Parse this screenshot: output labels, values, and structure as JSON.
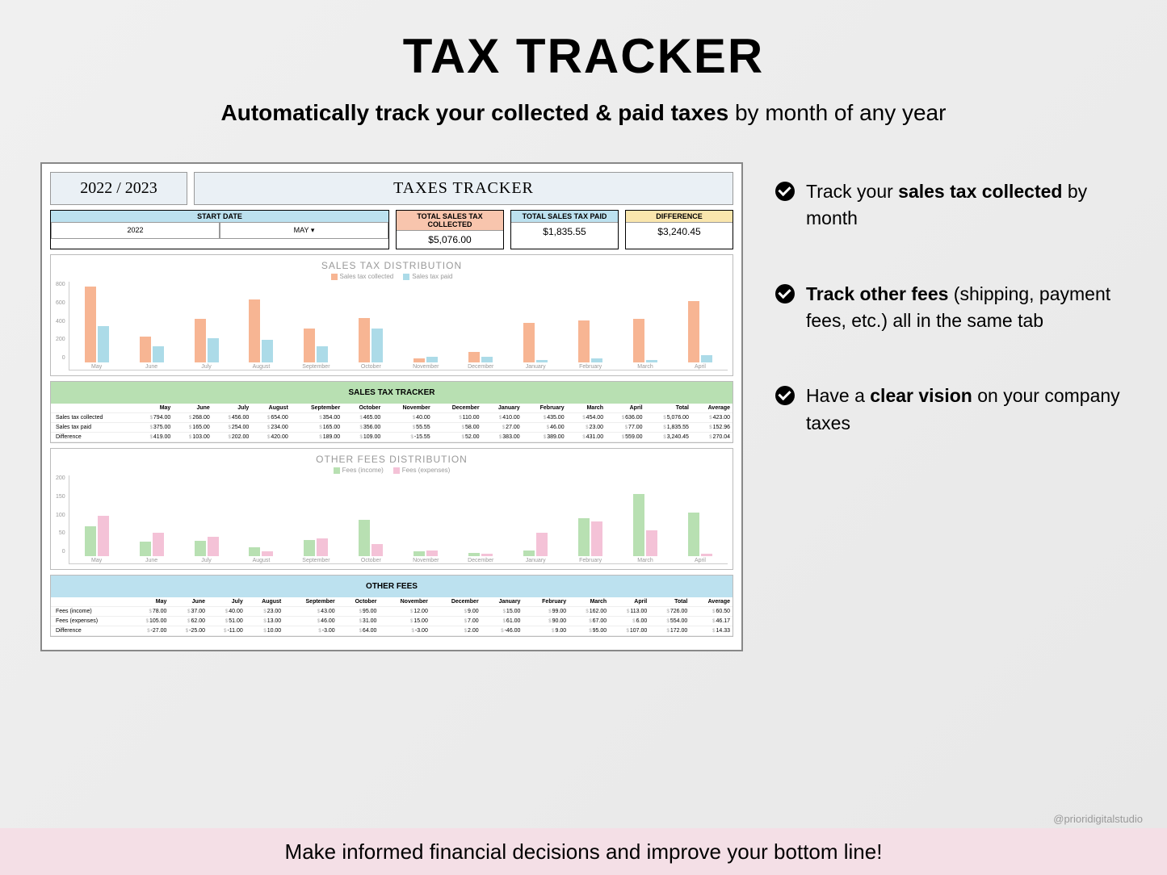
{
  "title": "TAX TRACKER",
  "subtitle_bold": "Automatically track your collected & paid taxes",
  "subtitle_rest": " by month of any year",
  "footer": "Make informed financial decisions and improve your bottom line!",
  "attribution": "@prioridigitalstudio",
  "bullets": [
    {
      "pre": "Track your ",
      "bold": "sales tax collected",
      "post": " by month"
    },
    {
      "pre": "",
      "bold": "Track other fees",
      "post": " (shipping, payment fees, etc.) all in the same tab"
    },
    {
      "pre": "Have a ",
      "bold": "clear vision",
      "post": " on your company taxes"
    }
  ],
  "sheet": {
    "year_label": "2022 / 2023",
    "main_title": "TAXES TRACKER",
    "start_date": {
      "label": "START DATE",
      "year": "2022",
      "month": "MAY"
    },
    "kpis": [
      {
        "label": "TOTAL SALES TAX COLLECTED",
        "value": "$5,076.00",
        "bg": "#f8c5ad"
      },
      {
        "label": "TOTAL SALES TAX PAID",
        "value": "$1,835.55",
        "bg": "#bce1ef"
      },
      {
        "label": "DIFFERENCE",
        "value": "$3,240.45",
        "bg": "#fae6ad"
      }
    ],
    "months": [
      "May",
      "June",
      "July",
      "August",
      "September",
      "October",
      "November",
      "December",
      "January",
      "February",
      "March",
      "April"
    ],
    "chart1": {
      "title": "SALES TAX DISTRIBUTION",
      "legend": [
        {
          "label": "Sales tax collected",
          "color": "#f7b593"
        },
        {
          "label": "Sales tax paid",
          "color": "#acdbe8"
        }
      ],
      "ymax": 800,
      "yticks": [
        "800",
        "600",
        "400",
        "200",
        "0"
      ],
      "collected": [
        794,
        268,
        456,
        654,
        354,
        465,
        40,
        110,
        410,
        435,
        454,
        636
      ],
      "paid": [
        375,
        165,
        254,
        234,
        165,
        356,
        55.55,
        58,
        27,
        46,
        23,
        77
      ]
    },
    "tracker1": {
      "title": "SALES TAX TRACKER",
      "title_bg": "#b8e0b2",
      "rows": [
        {
          "label": "Sales tax collected",
          "vals": [
            "794.00",
            "268.00",
            "456.00",
            "654.00",
            "354.00",
            "465.00",
            "40.00",
            "110.00",
            "410.00",
            "435.00",
            "454.00",
            "636.00"
          ],
          "total": "5,076.00",
          "avg": "423.00"
        },
        {
          "label": "Sales tax paid",
          "vals": [
            "375.00",
            "165.00",
            "254.00",
            "234.00",
            "165.00",
            "356.00",
            "55.55",
            "58.00",
            "27.00",
            "46.00",
            "23.00",
            "77.00"
          ],
          "total": "1,835.55",
          "avg": "152.96"
        },
        {
          "label": "Difference",
          "vals": [
            "419.00",
            "103.00",
            "202.00",
            "420.00",
            "189.00",
            "109.00",
            "-15.55",
            "52.00",
            "383.00",
            "389.00",
            "431.00",
            "559.00"
          ],
          "total": "3,240.45",
          "avg": "270.04"
        }
      ]
    },
    "chart2": {
      "title": "OTHER FEES DISTRIBUTION",
      "legend": [
        {
          "label": "Fees (income)",
          "color": "#b8e0b2"
        },
        {
          "label": "Fees (expenses)",
          "color": "#f4c2d7"
        }
      ],
      "ymax": 200,
      "yticks": [
        "200",
        "150",
        "100",
        "50",
        "0"
      ],
      "income": [
        78,
        37,
        40,
        23,
        43,
        95,
        12,
        9,
        15,
        99,
        162,
        113
      ],
      "expenses": [
        105,
        62,
        51,
        13,
        46,
        31,
        15,
        7,
        61,
        90,
        67,
        6
      ]
    },
    "tracker2": {
      "title": "OTHER FEES",
      "title_bg": "#bce1ef",
      "rows": [
        {
          "label": "Fees (income)",
          "vals": [
            "78.00",
            "37.00",
            "40.00",
            "23.00",
            "43.00",
            "95.00",
            "12.00",
            "9.00",
            "15.00",
            "99.00",
            "162.00",
            "113.00"
          ],
          "total": "726.00",
          "avg": "60.50"
        },
        {
          "label": "Fees (expenses)",
          "vals": [
            "105.00",
            "62.00",
            "51.00",
            "13.00",
            "46.00",
            "31.00",
            "15.00",
            "7.00",
            "61.00",
            "90.00",
            "67.00",
            "6.00"
          ],
          "total": "554.00",
          "avg": "46.17"
        },
        {
          "label": "Difference",
          "vals": [
            "-27.00",
            "-25.00",
            "-11.00",
            "10.00",
            "-3.00",
            "64.00",
            "-3.00",
            "2.00",
            "-46.00",
            "9.00",
            "95.00",
            "107.00"
          ],
          "total": "172.00",
          "avg": "14.33"
        }
      ]
    }
  }
}
